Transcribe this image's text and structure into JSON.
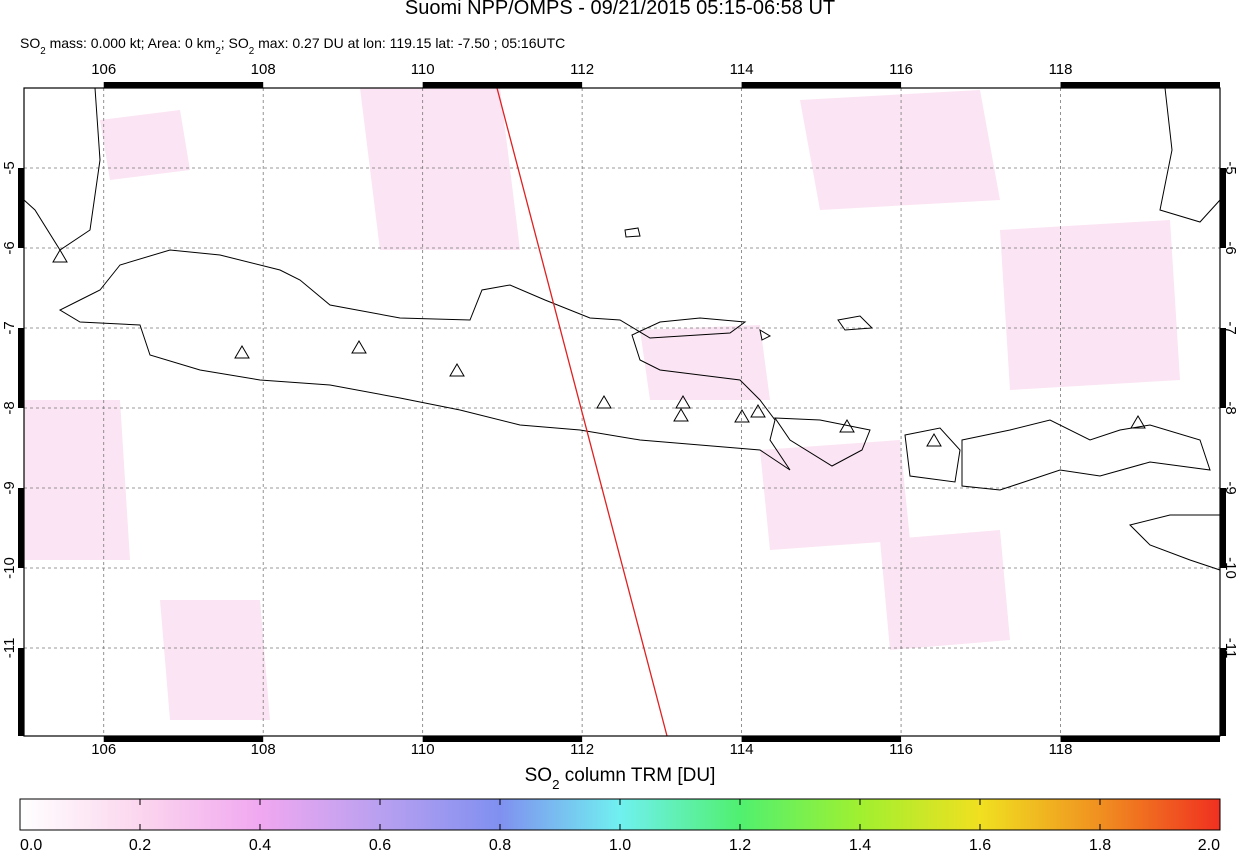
{
  "chart_data": {
    "type": "map",
    "title": "Suomi NPP/OMPS - 09/21/2015 05:15-06:58 UT",
    "subtitle_parts": [
      "SO",
      "2",
      " mass: 0.000 kt; Area: 0 km",
      "2",
      "; SO",
      "2",
      " max: 0.27 DU at lon: 119.15 lat: -7.50 ; 05:16UTC"
    ],
    "xlim": [
      105,
      120
    ],
    "ylim": [
      -12.1,
      -4
    ],
    "xticks": [
      106,
      108,
      110,
      112,
      114,
      116,
      118
    ],
    "yticks": [
      -5,
      -6,
      -7,
      -8,
      -9,
      -10,
      -11
    ],
    "grid": true,
    "colorbar": {
      "title_parts": [
        "SO",
        "2",
        " column TRM [DU]"
      ],
      "lim": [
        0,
        2
      ],
      "ticks": [
        {
          "value": 0,
          "label": "0.0"
        },
        {
          "value": 0.2,
          "label": "0.2"
        },
        {
          "value": 0.4,
          "label": "0.4"
        },
        {
          "value": 0.6,
          "label": "0.6"
        },
        {
          "value": 0.8,
          "label": "0.8"
        },
        {
          "value": 1.0,
          "label": "1.0"
        },
        {
          "value": 1.2,
          "label": "1.2"
        },
        {
          "value": 1.4,
          "label": "1.4"
        },
        {
          "value": 1.6,
          "label": "1.6"
        },
        {
          "value": 1.8,
          "label": "1.8"
        },
        {
          "value": 2.0,
          "label": "2.0"
        }
      ],
      "colors": [
        "#ffffff",
        "#fbd6ee",
        "#f0a8f0",
        "#b9a0f0",
        "#8090f0",
        "#70f0f0",
        "#50f070",
        "#a0f030",
        "#f0e020",
        "#f09020",
        "#f03020"
      ]
    }
  }
}
